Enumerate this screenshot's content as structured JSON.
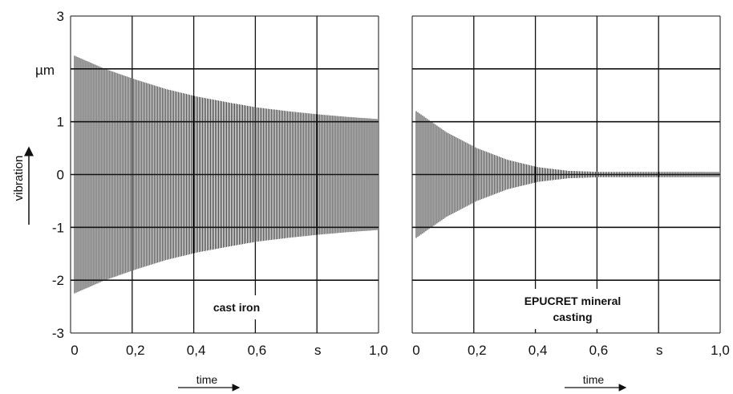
{
  "y_axis": {
    "label": "vibration",
    "unit": "µm",
    "tick_labels": [
      "3",
      "",
      "1",
      "0",
      "-1",
      "-2",
      "-3"
    ]
  },
  "chart_data": [
    {
      "type": "line",
      "annotation": "cast iron",
      "x_tick_labels": [
        "0",
        "0,2",
        "0,4",
        "0,6",
        "s",
        "1,0"
      ],
      "xlabel": "time",
      "xlim": [
        0,
        1.0
      ],
      "ylim": [
        -3,
        3
      ],
      "grid": true,
      "envelope": {
        "x": [
          0,
          0.1,
          0.2,
          0.3,
          0.4,
          0.5,
          0.6,
          0.7,
          0.8,
          0.9,
          1.0
        ],
        "amplitude": [
          2.25,
          2.0,
          1.8,
          1.62,
          1.48,
          1.37,
          1.27,
          1.2,
          1.14,
          1.09,
          1.05
        ]
      }
    },
    {
      "type": "line",
      "annotation": "EPUCRET mineral casting",
      "annotation_lines": [
        "EPUCRET mineral",
        "casting"
      ],
      "x_tick_labels": [
        "0",
        "0,2",
        "0,4",
        "0,6",
        "s",
        "1,0"
      ],
      "xlabel": "time",
      "xlim": [
        0,
        1.0
      ],
      "ylim": [
        -3,
        3
      ],
      "grid": true,
      "envelope": {
        "x": [
          0,
          0.1,
          0.2,
          0.3,
          0.4,
          0.5,
          0.6,
          0.7,
          0.8,
          0.9,
          1.0
        ],
        "amplitude": [
          1.2,
          0.8,
          0.5,
          0.28,
          0.14,
          0.07,
          0.05,
          0.05,
          0.05,
          0.05,
          0.05
        ]
      }
    }
  ]
}
